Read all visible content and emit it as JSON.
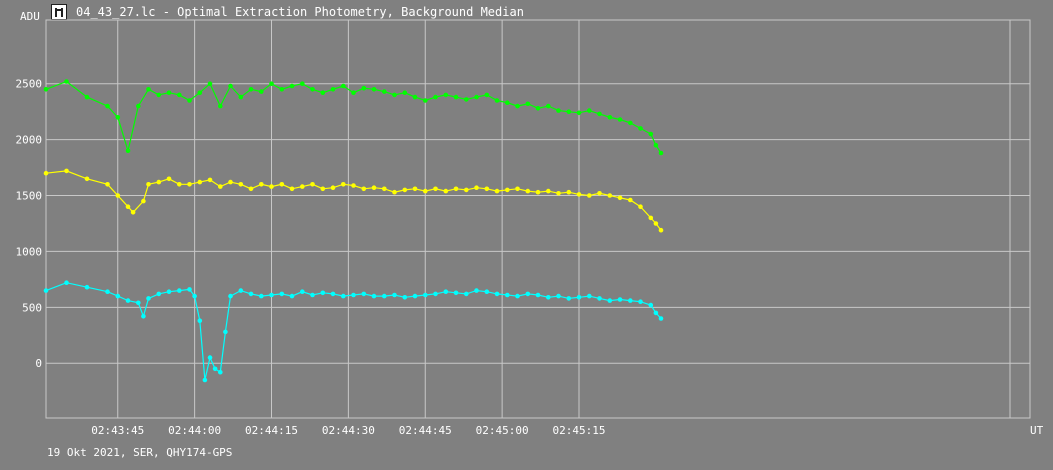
{
  "window": {
    "title": "04_43_27.lc - Optimal Extraction Photometry, Background Median",
    "icon": "lightcurve-app-icon"
  },
  "footer": {
    "text": "19 Okt 2021, SER, QHY174-GPS"
  },
  "colors": {
    "background": "#808080",
    "grid": "#c8c8c8",
    "text": "#ffffff",
    "green": "#00ff00",
    "yellow": "#ffff00",
    "cyan": "#00ffff"
  },
  "chart_data": {
    "type": "line",
    "title": "",
    "xlabel": "UT",
    "ylabel": "ADU",
    "x_unit": "seconds after 02:43:27 UT",
    "xlim": [
      4,
      196
    ],
    "ylim": [
      -490,
      3070
    ],
    "grid": true,
    "legend": "none",
    "x_ticks": [
      {
        "value": 18,
        "label": "02:43:45"
      },
      {
        "value": 33,
        "label": "02:44:00"
      },
      {
        "value": 48,
        "label": "02:44:15"
      },
      {
        "value": 63,
        "label": "02:44:30"
      },
      {
        "value": 78,
        "label": "02:44:45"
      },
      {
        "value": 93,
        "label": "02:45:00"
      },
      {
        "value": 108,
        "label": "02:45:15"
      }
    ],
    "y_ticks": [
      {
        "value": 0,
        "label": "0"
      },
      {
        "value": 500,
        "label": "500"
      },
      {
        "value": 1000,
        "label": "1000"
      },
      {
        "value": 1500,
        "label": "1500"
      },
      {
        "value": 2000,
        "label": "2000"
      },
      {
        "value": 2500,
        "label": "2500"
      }
    ],
    "series": [
      {
        "color": "#00ff00",
        "points": [
          [
            4,
            2450
          ],
          [
            8,
            2520
          ],
          [
            12,
            2380
          ],
          [
            16,
            2300
          ],
          [
            18,
            2200
          ],
          [
            20,
            1900
          ],
          [
            22,
            2300
          ],
          [
            24,
            2450
          ],
          [
            26,
            2400
          ],
          [
            28,
            2420
          ],
          [
            30,
            2400
          ],
          [
            32,
            2350
          ],
          [
            34,
            2420
          ],
          [
            36,
            2500
          ],
          [
            38,
            2300
          ],
          [
            40,
            2480
          ],
          [
            42,
            2380
          ],
          [
            44,
            2450
          ],
          [
            46,
            2430
          ],
          [
            48,
            2500
          ],
          [
            50,
            2450
          ],
          [
            52,
            2480
          ],
          [
            54,
            2500
          ],
          [
            56,
            2450
          ],
          [
            58,
            2420
          ],
          [
            60,
            2450
          ],
          [
            62,
            2480
          ],
          [
            64,
            2420
          ],
          [
            66,
            2460
          ],
          [
            68,
            2450
          ],
          [
            70,
            2430
          ],
          [
            72,
            2400
          ],
          [
            74,
            2420
          ],
          [
            76,
            2380
          ],
          [
            78,
            2350
          ],
          [
            80,
            2380
          ],
          [
            82,
            2400
          ],
          [
            84,
            2380
          ],
          [
            86,
            2360
          ],
          [
            88,
            2380
          ],
          [
            90,
            2400
          ],
          [
            92,
            2350
          ],
          [
            94,
            2330
          ],
          [
            96,
            2300
          ],
          [
            98,
            2320
          ],
          [
            100,
            2280
          ],
          [
            102,
            2300
          ],
          [
            104,
            2260
          ],
          [
            106,
            2250
          ],
          [
            108,
            2240
          ],
          [
            110,
            2260
          ],
          [
            112,
            2230
          ],
          [
            114,
            2200
          ],
          [
            116,
            2180
          ],
          [
            118,
            2150
          ],
          [
            120,
            2100
          ],
          [
            122,
            2050
          ],
          [
            123,
            1950
          ],
          [
            124,
            1880
          ]
        ]
      },
      {
        "color": "#ffff00",
        "points": [
          [
            4,
            1700
          ],
          [
            8,
            1720
          ],
          [
            12,
            1650
          ],
          [
            16,
            1600
          ],
          [
            18,
            1500
          ],
          [
            20,
            1400
          ],
          [
            21,
            1350
          ],
          [
            23,
            1450
          ],
          [
            24,
            1600
          ],
          [
            26,
            1620
          ],
          [
            28,
            1650
          ],
          [
            30,
            1600
          ],
          [
            32,
            1600
          ],
          [
            34,
            1620
          ],
          [
            36,
            1640
          ],
          [
            38,
            1580
          ],
          [
            40,
            1620
          ],
          [
            42,
            1600
          ],
          [
            44,
            1560
          ],
          [
            46,
            1600
          ],
          [
            48,
            1580
          ],
          [
            50,
            1600
          ],
          [
            52,
            1560
          ],
          [
            54,
            1580
          ],
          [
            56,
            1600
          ],
          [
            58,
            1560
          ],
          [
            60,
            1570
          ],
          [
            62,
            1600
          ],
          [
            64,
            1590
          ],
          [
            66,
            1560
          ],
          [
            68,
            1570
          ],
          [
            70,
            1560
          ],
          [
            72,
            1530
          ],
          [
            74,
            1550
          ],
          [
            76,
            1560
          ],
          [
            78,
            1540
          ],
          [
            80,
            1560
          ],
          [
            82,
            1540
          ],
          [
            84,
            1560
          ],
          [
            86,
            1550
          ],
          [
            88,
            1570
          ],
          [
            90,
            1560
          ],
          [
            92,
            1540
          ],
          [
            94,
            1550
          ],
          [
            96,
            1560
          ],
          [
            98,
            1540
          ],
          [
            100,
            1530
          ],
          [
            102,
            1540
          ],
          [
            104,
            1520
          ],
          [
            106,
            1530
          ],
          [
            108,
            1510
          ],
          [
            110,
            1500
          ],
          [
            112,
            1520
          ],
          [
            114,
            1500
          ],
          [
            116,
            1480
          ],
          [
            118,
            1460
          ],
          [
            120,
            1400
          ],
          [
            122,
            1300
          ],
          [
            123,
            1250
          ],
          [
            124,
            1190
          ]
        ]
      },
      {
        "color": "#00ffff",
        "points": [
          [
            4,
            650
          ],
          [
            8,
            720
          ],
          [
            12,
            680
          ],
          [
            16,
            640
          ],
          [
            18,
            600
          ],
          [
            20,
            560
          ],
          [
            22,
            540
          ],
          [
            23,
            420
          ],
          [
            24,
            580
          ],
          [
            26,
            620
          ],
          [
            28,
            640
          ],
          [
            30,
            650
          ],
          [
            32,
            660
          ],
          [
            33,
            600
          ],
          [
            34,
            380
          ],
          [
            35,
            -150
          ],
          [
            36,
            50
          ],
          [
            37,
            -50
          ],
          [
            38,
            -80
          ],
          [
            39,
            280
          ],
          [
            40,
            600
          ],
          [
            42,
            650
          ],
          [
            44,
            620
          ],
          [
            46,
            600
          ],
          [
            48,
            610
          ],
          [
            50,
            620
          ],
          [
            52,
            600
          ],
          [
            54,
            640
          ],
          [
            56,
            610
          ],
          [
            58,
            630
          ],
          [
            60,
            620
          ],
          [
            62,
            600
          ],
          [
            64,
            610
          ],
          [
            66,
            620
          ],
          [
            68,
            600
          ],
          [
            70,
            600
          ],
          [
            72,
            610
          ],
          [
            74,
            590
          ],
          [
            76,
            600
          ],
          [
            78,
            610
          ],
          [
            80,
            620
          ],
          [
            82,
            640
          ],
          [
            84,
            630
          ],
          [
            86,
            620
          ],
          [
            88,
            650
          ],
          [
            90,
            640
          ],
          [
            92,
            620
          ],
          [
            94,
            610
          ],
          [
            96,
            600
          ],
          [
            98,
            620
          ],
          [
            100,
            610
          ],
          [
            102,
            590
          ],
          [
            104,
            600
          ],
          [
            106,
            580
          ],
          [
            108,
            590
          ],
          [
            110,
            600
          ],
          [
            112,
            580
          ],
          [
            114,
            560
          ],
          [
            116,
            570
          ],
          [
            118,
            560
          ],
          [
            120,
            550
          ],
          [
            122,
            520
          ],
          [
            123,
            450
          ],
          [
            124,
            400
          ]
        ]
      }
    ]
  }
}
